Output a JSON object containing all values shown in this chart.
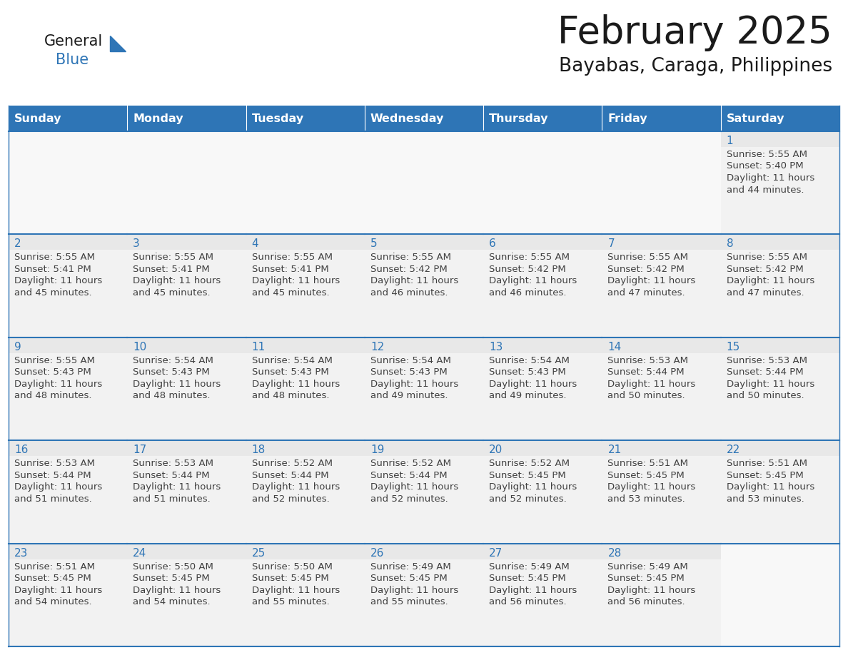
{
  "title": "February 2025",
  "subtitle": "Bayabas, Caraga, Philippines",
  "header_bg": "#2E75B6",
  "header_text_color": "#FFFFFF",
  "cell_border_color": "#2E75B6",
  "day_number_color": "#2E75B6",
  "cell_bg_color": "#F2F2F2",
  "cell_day_bg_color": "#E8E8E8",
  "info_text_color": "#404040",
  "bg_color": "#FFFFFF",
  "days_of_week": [
    "Sunday",
    "Monday",
    "Tuesday",
    "Wednesday",
    "Thursday",
    "Friday",
    "Saturday"
  ],
  "calendar_data": [
    [
      null,
      null,
      null,
      null,
      null,
      null,
      {
        "day": 1,
        "sunrise": "5:55 AM",
        "sunset": "5:40 PM",
        "daylight": "11 hours",
        "daylight2": "and 44 minutes."
      }
    ],
    [
      {
        "day": 2,
        "sunrise": "5:55 AM",
        "sunset": "5:41 PM",
        "daylight": "11 hours",
        "daylight2": "and 45 minutes."
      },
      {
        "day": 3,
        "sunrise": "5:55 AM",
        "sunset": "5:41 PM",
        "daylight": "11 hours",
        "daylight2": "and 45 minutes."
      },
      {
        "day": 4,
        "sunrise": "5:55 AM",
        "sunset": "5:41 PM",
        "daylight": "11 hours",
        "daylight2": "and 45 minutes."
      },
      {
        "day": 5,
        "sunrise": "5:55 AM",
        "sunset": "5:42 PM",
        "daylight": "11 hours",
        "daylight2": "and 46 minutes."
      },
      {
        "day": 6,
        "sunrise": "5:55 AM",
        "sunset": "5:42 PM",
        "daylight": "11 hours",
        "daylight2": "and 46 minutes."
      },
      {
        "day": 7,
        "sunrise": "5:55 AM",
        "sunset": "5:42 PM",
        "daylight": "11 hours",
        "daylight2": "and 47 minutes."
      },
      {
        "day": 8,
        "sunrise": "5:55 AM",
        "sunset": "5:42 PM",
        "daylight": "11 hours",
        "daylight2": "and 47 minutes."
      }
    ],
    [
      {
        "day": 9,
        "sunrise": "5:55 AM",
        "sunset": "5:43 PM",
        "daylight": "11 hours",
        "daylight2": "and 48 minutes."
      },
      {
        "day": 10,
        "sunrise": "5:54 AM",
        "sunset": "5:43 PM",
        "daylight": "11 hours",
        "daylight2": "and 48 minutes."
      },
      {
        "day": 11,
        "sunrise": "5:54 AM",
        "sunset": "5:43 PM",
        "daylight": "11 hours",
        "daylight2": "and 48 minutes."
      },
      {
        "day": 12,
        "sunrise": "5:54 AM",
        "sunset": "5:43 PM",
        "daylight": "11 hours",
        "daylight2": "and 49 minutes."
      },
      {
        "day": 13,
        "sunrise": "5:54 AM",
        "sunset": "5:43 PM",
        "daylight": "11 hours",
        "daylight2": "and 49 minutes."
      },
      {
        "day": 14,
        "sunrise": "5:53 AM",
        "sunset": "5:44 PM",
        "daylight": "11 hours",
        "daylight2": "and 50 minutes."
      },
      {
        "day": 15,
        "sunrise": "5:53 AM",
        "sunset": "5:44 PM",
        "daylight": "11 hours",
        "daylight2": "and 50 minutes."
      }
    ],
    [
      {
        "day": 16,
        "sunrise": "5:53 AM",
        "sunset": "5:44 PM",
        "daylight": "11 hours",
        "daylight2": "and 51 minutes."
      },
      {
        "day": 17,
        "sunrise": "5:53 AM",
        "sunset": "5:44 PM",
        "daylight": "11 hours",
        "daylight2": "and 51 minutes."
      },
      {
        "day": 18,
        "sunrise": "5:52 AM",
        "sunset": "5:44 PM",
        "daylight": "11 hours",
        "daylight2": "and 52 minutes."
      },
      {
        "day": 19,
        "sunrise": "5:52 AM",
        "sunset": "5:44 PM",
        "daylight": "11 hours",
        "daylight2": "and 52 minutes."
      },
      {
        "day": 20,
        "sunrise": "5:52 AM",
        "sunset": "5:45 PM",
        "daylight": "11 hours",
        "daylight2": "and 52 minutes."
      },
      {
        "day": 21,
        "sunrise": "5:51 AM",
        "sunset": "5:45 PM",
        "daylight": "11 hours",
        "daylight2": "and 53 minutes."
      },
      {
        "day": 22,
        "sunrise": "5:51 AM",
        "sunset": "5:45 PM",
        "daylight": "11 hours",
        "daylight2": "and 53 minutes."
      }
    ],
    [
      {
        "day": 23,
        "sunrise": "5:51 AM",
        "sunset": "5:45 PM",
        "daylight": "11 hours",
        "daylight2": "and 54 minutes."
      },
      {
        "day": 24,
        "sunrise": "5:50 AM",
        "sunset": "5:45 PM",
        "daylight": "11 hours",
        "daylight2": "and 54 minutes."
      },
      {
        "day": 25,
        "sunrise": "5:50 AM",
        "sunset": "5:45 PM",
        "daylight": "11 hours",
        "daylight2": "and 55 minutes."
      },
      {
        "day": 26,
        "sunrise": "5:49 AM",
        "sunset": "5:45 PM",
        "daylight": "11 hours",
        "daylight2": "and 55 minutes."
      },
      {
        "day": 27,
        "sunrise": "5:49 AM",
        "sunset": "5:45 PM",
        "daylight": "11 hours",
        "daylight2": "and 56 minutes."
      },
      {
        "day": 28,
        "sunrise": "5:49 AM",
        "sunset": "5:45 PM",
        "daylight": "11 hours",
        "daylight2": "and 56 minutes."
      },
      null
    ]
  ],
  "logo_general_color": "#1a1a1a",
  "logo_blue_color": "#2E75B6",
  "title_fontsize": 38,
  "subtitle_fontsize": 19,
  "header_fontsize": 11.5,
  "day_num_fontsize": 11,
  "info_fontsize": 9.5
}
